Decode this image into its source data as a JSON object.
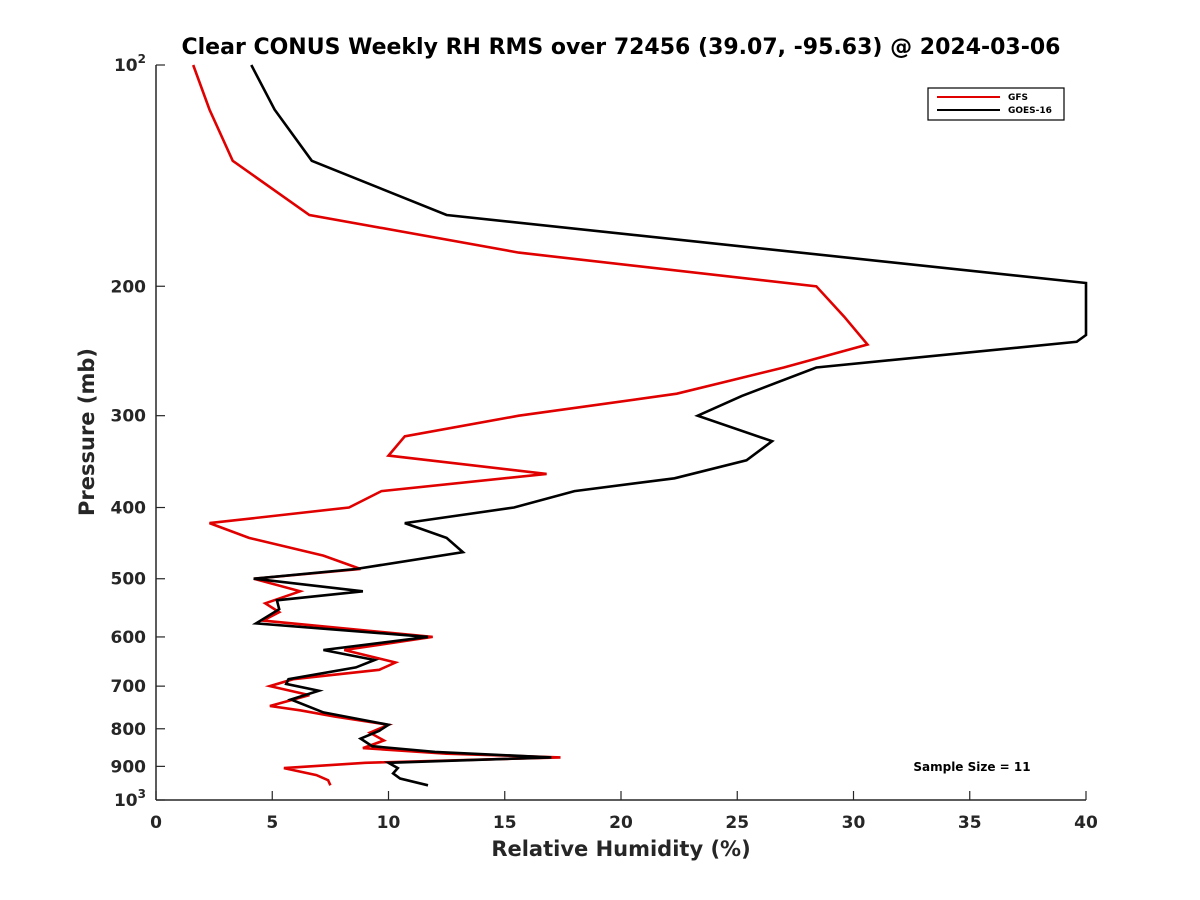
{
  "chart_data": {
    "type": "line",
    "title": "Clear CONUS Weekly RH RMS over 72456 (39.07, -95.63) @ 2024-03-06",
    "xlabel": "Relative Humidity (%)",
    "ylabel": "Pressure (mb)",
    "xlim": [
      0,
      40
    ],
    "ylim": [
      100,
      1000
    ],
    "y_scale": "log",
    "y_reversed": true,
    "x_ticks": [
      "0",
      "5",
      "10",
      "15",
      "20",
      "25",
      "30",
      "35",
      "40"
    ],
    "y_ticks": [
      {
        "value": 100,
        "base": "10",
        "exp": "2"
      },
      {
        "value": 200,
        "label": "200"
      },
      {
        "value": 300,
        "label": "300"
      },
      {
        "value": 400,
        "label": "400"
      },
      {
        "value": 500,
        "label": "500"
      },
      {
        "value": 600,
        "label": "600"
      },
      {
        "value": 700,
        "label": "700"
      },
      {
        "value": 800,
        "label": "800"
      },
      {
        "value": 900,
        "label": "900"
      },
      {
        "value": 1000,
        "base": "10",
        "exp": "3"
      }
    ],
    "legend_position": "top-right",
    "annotation": "Sample Size = 11",
    "series": [
      {
        "name": "GFS",
        "color": "#e00000",
        "points": [
          [
            1.6,
            100
          ],
          [
            2.3,
            115
          ],
          [
            3.3,
            135
          ],
          [
            6.6,
            160
          ],
          [
            15.6,
            180
          ],
          [
            28.4,
            200
          ],
          [
            29.6,
            220
          ],
          [
            30.6,
            240
          ],
          [
            27.0,
            258
          ],
          [
            22.4,
            280
          ],
          [
            15.6,
            300
          ],
          [
            10.7,
            320
          ],
          [
            10.0,
            340
          ],
          [
            16.8,
            360
          ],
          [
            9.7,
            380
          ],
          [
            8.3,
            400
          ],
          [
            2.3,
            420
          ],
          [
            4.0,
            440
          ],
          [
            7.2,
            465
          ],
          [
            8.8,
            485
          ],
          [
            4.2,
            500
          ],
          [
            6.2,
            520
          ],
          [
            4.7,
            540
          ],
          [
            5.3,
            555
          ],
          [
            4.6,
            570
          ],
          [
            11.9,
            600
          ],
          [
            8.1,
            625
          ],
          [
            10.3,
            650
          ],
          [
            9.6,
            665
          ],
          [
            5.9,
            685
          ],
          [
            4.9,
            700
          ],
          [
            6.6,
            720
          ],
          [
            4.9,
            745
          ],
          [
            6.2,
            755
          ],
          [
            7.7,
            770
          ],
          [
            10.0,
            790
          ],
          [
            9.2,
            810
          ],
          [
            9.8,
            830
          ],
          [
            8.9,
            850
          ],
          [
            12.5,
            865
          ],
          [
            17.4,
            875
          ],
          [
            9.0,
            890
          ],
          [
            5.5,
            905
          ],
          [
            6.9,
            925
          ],
          [
            7.4,
            940
          ],
          [
            7.5,
            955
          ]
        ]
      },
      {
        "name": "GOES-16",
        "color": "#000000",
        "points": [
          [
            4.1,
            100
          ],
          [
            5.1,
            115
          ],
          [
            6.7,
            135
          ],
          [
            12.5,
            160
          ],
          [
            40.0,
            198
          ],
          [
            40.0,
            233
          ],
          [
            39.6,
            238
          ],
          [
            28.4,
            258
          ],
          [
            25.2,
            282
          ],
          [
            23.3,
            300
          ],
          [
            26.5,
            325
          ],
          [
            25.4,
            345
          ],
          [
            22.3,
            365
          ],
          [
            18.0,
            380
          ],
          [
            15.4,
            400
          ],
          [
            10.7,
            420
          ],
          [
            12.5,
            440
          ],
          [
            13.2,
            460
          ],
          [
            8.6,
            485
          ],
          [
            4.2,
            500
          ],
          [
            8.9,
            520
          ],
          [
            5.2,
            535
          ],
          [
            5.3,
            550
          ],
          [
            4.3,
            575
          ],
          [
            11.7,
            600
          ],
          [
            7.2,
            625
          ],
          [
            9.4,
            645
          ],
          [
            8.6,
            660
          ],
          [
            5.7,
            685
          ],
          [
            5.6,
            695
          ],
          [
            7.0,
            710
          ],
          [
            5.8,
            730
          ],
          [
            7.2,
            760
          ],
          [
            10.0,
            790
          ],
          [
            9.6,
            805
          ],
          [
            8.8,
            825
          ],
          [
            9.3,
            845
          ],
          [
            12.0,
            860
          ],
          [
            17.0,
            875
          ],
          [
            10.0,
            890
          ],
          [
            10.4,
            905
          ],
          [
            10.2,
            920
          ],
          [
            10.5,
            935
          ],
          [
            11.7,
            955
          ]
        ]
      }
    ]
  }
}
